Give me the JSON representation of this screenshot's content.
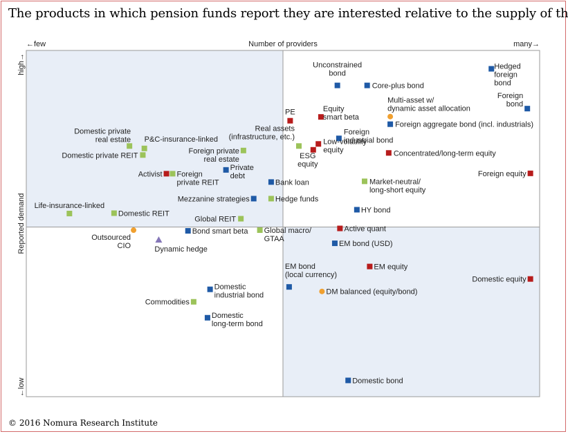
{
  "title": "The products in which pension funds report they are interested relative to the supply of them",
  "copyright": "© 2016 Nomura Research Institute",
  "chart_data": {
    "type": "scatter",
    "xlabel": "Number of providers",
    "ylabel": "Reported demand",
    "x_low_label": "←few",
    "x_high_label": "many→",
    "y_low_label": "←low",
    "y_high_label": "high→",
    "xlim": [
      0,
      100
    ],
    "ylim": [
      0,
      100
    ],
    "quadrant_split": {
      "x": 50,
      "y": 49
    },
    "colors": {
      "blue": "#1f5aa6",
      "green": "#9cc35a",
      "red": "#b71c1c",
      "orange": "#f0a030",
      "purple": "#8577b8",
      "quadrant_fill": "#e8eef7"
    },
    "points": [
      {
        "label": [
          "Hedged",
          "foreign",
          "bond"
        ],
        "x": 90.6,
        "y": 94.7,
        "color": "blue",
        "marker": "square",
        "anchor": "start",
        "dx": 4,
        "dy": 0
      },
      {
        "label": [
          "Unconstrained",
          "bond"
        ],
        "x": 60.6,
        "y": 89.9,
        "color": "blue",
        "marker": "square",
        "anchor": "middle",
        "dx": 0,
        "dy": -26
      },
      {
        "label": [
          "Core-plus bond"
        ],
        "x": 66.4,
        "y": 89.9,
        "color": "blue",
        "marker": "square",
        "anchor": "start",
        "dx": 7,
        "dy": 4
      },
      {
        "label": [
          "Foreign",
          "bond"
        ],
        "x": 97.6,
        "y": 83.2,
        "color": "blue",
        "marker": "square",
        "anchor": "end",
        "dx": -6,
        "dy": -15
      },
      {
        "label": [
          "Multi-asset w/",
          "dynamic asset allocation"
        ],
        "x": 70.9,
        "y": 80.9,
        "color": "orange",
        "marker": "circle",
        "anchor": "start",
        "dx": -4,
        "dy": -20
      },
      {
        "label": [
          "Foreign aggregate bond (incl. industrials)"
        ],
        "x": 70.9,
        "y": 78.7,
        "color": "blue",
        "marker": "square",
        "anchor": "start",
        "dx": 7,
        "dy": 4
      },
      {
        "label": [
          "PE"
        ],
        "x": 51.4,
        "y": 79.7,
        "color": "red",
        "marker": "square",
        "anchor": "middle",
        "dx": 0,
        "dy": -9
      },
      {
        "label": [
          "Equity",
          "smart beta"
        ],
        "x": 57.4,
        "y": 80.8,
        "color": "red",
        "marker": "square",
        "anchor": "start",
        "dx": 3,
        "dy": -8
      },
      {
        "label": [
          "Foreign",
          "industrial bond"
        ],
        "x": 60.9,
        "y": 74.6,
        "color": "blue",
        "marker": "square",
        "anchor": "start",
        "dx": 7,
        "dy": -6
      },
      {
        "label": [
          "Real assets",
          "(infrastructure, etc.)"
        ],
        "x": 53.1,
        "y": 72.4,
        "color": "green",
        "marker": "square",
        "anchor": "end",
        "dx": -6,
        "dy": -22
      },
      {
        "label": [
          "ESG",
          "equity"
        ],
        "x": 55.9,
        "y": 71.3,
        "color": "red",
        "marker": "square",
        "anchor": "middle",
        "dx": -8,
        "dy": 12
      },
      {
        "label": [
          "Low-volatility",
          "equity"
        ],
        "x": 56.9,
        "y": 73.0,
        "color": "red",
        "marker": "square",
        "anchor": "start",
        "dx": 7,
        "dy": 0
      },
      {
        "label": [
          "Concentrated/long-term equity"
        ],
        "x": 70.6,
        "y": 70.4,
        "color": "red",
        "marker": "square",
        "anchor": "start",
        "dx": 7,
        "dy": 4
      },
      {
        "label": [
          "Foreign equity"
        ],
        "x": 98.2,
        "y": 64.5,
        "color": "red",
        "marker": "square",
        "anchor": "end",
        "dx": -6,
        "dy": 4
      },
      {
        "label": [
          "Market-neutral/",
          "long-short equity"
        ],
        "x": 65.9,
        "y": 62.2,
        "color": "green",
        "marker": "square",
        "anchor": "start",
        "dx": 7,
        "dy": 4
      },
      {
        "label": [
          "Domestic private",
          "real estate"
        ],
        "x": 20.1,
        "y": 72.4,
        "color": "green",
        "marker": "square",
        "anchor": "end",
        "dx": 2,
        "dy": -18
      },
      {
        "label": [
          "P&C-insurance-linked"
        ],
        "x": 23.0,
        "y": 71.7,
        "color": "green",
        "marker": "square",
        "anchor": "start",
        "dx": 0,
        "dy": -10
      },
      {
        "label": [
          "Domestic private REIT"
        ],
        "x": 22.7,
        "y": 69.8,
        "color": "green",
        "marker": "square",
        "anchor": "end",
        "dx": -7,
        "dy": 4
      },
      {
        "label": [
          "Foreign private",
          "real estate"
        ],
        "x": 42.3,
        "y": 71.1,
        "color": "green",
        "marker": "square",
        "anchor": "end",
        "dx": -6,
        "dy": 4
      },
      {
        "label": [
          "Private",
          "debt"
        ],
        "x": 38.9,
        "y": 65.5,
        "color": "blue",
        "marker": "square",
        "anchor": "start",
        "dx": 6,
        "dy": 0
      },
      {
        "label": [
          "Activist"
        ],
        "x": 27.3,
        "y": 64.4,
        "color": "red",
        "marker": "square",
        "anchor": "end",
        "dx": -6,
        "dy": 4
      },
      {
        "label": [
          "Foreign",
          "private REIT"
        ],
        "x": 28.5,
        "y": 64.4,
        "color": "green",
        "marker": "square",
        "anchor": "start",
        "dx": 6,
        "dy": 4
      },
      {
        "label": [
          "Bank loan"
        ],
        "x": 47.7,
        "y": 62.0,
        "color": "blue",
        "marker": "square",
        "anchor": "start",
        "dx": 6,
        "dy": 4
      },
      {
        "label": [
          "Mezzanine strategies"
        ],
        "x": 44.3,
        "y": 57.2,
        "color": "blue",
        "marker": "square",
        "anchor": "end",
        "dx": -6,
        "dy": 4
      },
      {
        "label": [
          "Hedge funds"
        ],
        "x": 47.7,
        "y": 57.2,
        "color": "green",
        "marker": "square",
        "anchor": "start",
        "dx": 6,
        "dy": 4
      },
      {
        "label": [
          "HY bond"
        ],
        "x": 64.4,
        "y": 54.0,
        "color": "blue",
        "marker": "square",
        "anchor": "start",
        "dx": 6,
        "dy": 4
      },
      {
        "label": [
          "Life-insurance-linked"
        ],
        "x": 8.4,
        "y": 52.9,
        "color": "green",
        "marker": "square",
        "anchor": "middle",
        "dx": 0,
        "dy": -8
      },
      {
        "label": [
          "Domestic REIT"
        ],
        "x": 17.1,
        "y": 53.0,
        "color": "green",
        "marker": "square",
        "anchor": "start",
        "dx": 6,
        "dy": 4
      },
      {
        "label": [
          "Global REIT"
        ],
        "x": 41.8,
        "y": 51.4,
        "color": "green",
        "marker": "square",
        "anchor": "end",
        "dx": -7,
        "dy": 4
      },
      {
        "label": [
          "Active quant"
        ],
        "x": 61.1,
        "y": 48.6,
        "color": "red",
        "marker": "square",
        "anchor": "start",
        "dx": 6,
        "dy": 4
      },
      {
        "label": [
          "Outsourced",
          "CIO"
        ],
        "x": 20.9,
        "y": 48.1,
        "color": "orange",
        "marker": "circle",
        "anchor": "end",
        "dx": -4,
        "dy": 14
      },
      {
        "label": [
          "Bond smart beta"
        ],
        "x": 31.5,
        "y": 47.9,
        "color": "blue",
        "marker": "square",
        "anchor": "start",
        "dx": 6,
        "dy": 4
      },
      {
        "label": [
          "Global macro/",
          "GTAA"
        ],
        "x": 45.5,
        "y": 48.1,
        "color": "green",
        "marker": "square",
        "anchor": "start",
        "dx": 6,
        "dy": 4
      },
      {
        "label": [
          "Dynamic hedge"
        ],
        "x": 25.8,
        "y": 45.3,
        "color": "purple",
        "marker": "triangle",
        "anchor": "start",
        "dx": -6,
        "dy": 17
      },
      {
        "label": [
          "EM bond (USD)"
        ],
        "x": 60.1,
        "y": 44.3,
        "color": "blue",
        "marker": "square",
        "anchor": "start",
        "dx": 6,
        "dy": 4
      },
      {
        "label": [
          "EM equity"
        ],
        "x": 66.9,
        "y": 37.6,
        "color": "red",
        "marker": "square",
        "anchor": "start",
        "dx": 6,
        "dy": 4
      },
      {
        "label": [
          "Domestic equity"
        ],
        "x": 98.2,
        "y": 34.0,
        "color": "red",
        "marker": "square",
        "anchor": "end",
        "dx": -6,
        "dy": 4
      },
      {
        "label": [
          "EM bond",
          "(local currency)"
        ],
        "x": 51.2,
        "y": 31.7,
        "color": "blue",
        "marker": "square",
        "anchor": "start",
        "dx": -6,
        "dy": -26
      },
      {
        "label": [
          "DM balanced (equity/bond)"
        ],
        "x": 57.6,
        "y": 30.4,
        "color": "orange",
        "marker": "circle",
        "anchor": "start",
        "dx": 6,
        "dy": 4
      },
      {
        "label": [
          "Domestic",
          "industrial bond"
        ],
        "x": 35.8,
        "y": 31.0,
        "color": "blue",
        "marker": "square",
        "anchor": "start",
        "dx": 6,
        "dy": 0
      },
      {
        "label": [
          "Commodities"
        ],
        "x": 32.6,
        "y": 27.4,
        "color": "green",
        "marker": "square",
        "anchor": "end",
        "dx": -6,
        "dy": 4
      },
      {
        "label": [
          "Domestic",
          "long-term bond"
        ],
        "x": 35.3,
        "y": 22.8,
        "color": "blue",
        "marker": "square",
        "anchor": "start",
        "dx": 6,
        "dy": 0
      },
      {
        "label": [
          "Domestic bond"
        ],
        "x": 62.7,
        "y": 4.7,
        "color": "blue",
        "marker": "square",
        "anchor": "start",
        "dx": 6,
        "dy": 4
      }
    ]
  }
}
